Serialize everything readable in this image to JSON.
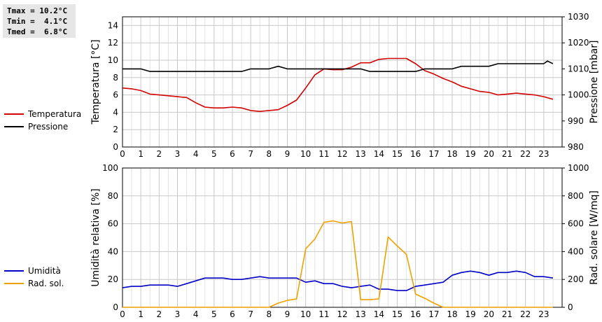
{
  "stats": {
    "tmax": "Tmax = 10.2°C",
    "tmin": "Tmin =  4.1°C",
    "tmed": "Tmed =  6.8°C"
  },
  "legend_top": [
    {
      "label": "Temperatura",
      "color": "#d40000"
    },
    {
      "label": "Pressione",
      "color": "#000000"
    }
  ],
  "legend_bottom": [
    {
      "label": "Umidità",
      "color": "#0000c8"
    },
    {
      "label": "Rad. sol.",
      "color": "#f0a000"
    }
  ],
  "chart_data": [
    {
      "type": "line",
      "xlim": [
        0,
        24
      ],
      "x_ticks": [
        "0",
        "1",
        "2",
        "3",
        "4",
        "5",
        "6",
        "7",
        "8",
        "9",
        "10",
        "11",
        "12",
        "13",
        "14",
        "15",
        "16",
        "17",
        "18",
        "19",
        "20",
        "21",
        "22",
        "23"
      ],
      "ylabel": "Temperatura [°C]",
      "ylim": [
        0,
        15
      ],
      "y_ticks": [
        "0",
        "2",
        "4",
        "6",
        "8",
        "10",
        "12",
        "14"
      ],
      "ylabel_right": "Pressione [mbar]",
      "ylim_right": [
        980,
        1030
      ],
      "y_ticks_right": [
        "980",
        "990",
        "1000",
        "1010",
        "1020",
        "1030"
      ],
      "grid": true,
      "series": [
        {
          "name": "Temperatura",
          "axis": "left",
          "color": "#d40000",
          "x": [
            0,
            0.5,
            1,
            1.5,
            2,
            2.5,
            3,
            3.5,
            4,
            4.5,
            5,
            5.5,
            6,
            6.5,
            7,
            7.5,
            8,
            8.5,
            9,
            9.5,
            10,
            10.5,
            11,
            11.5,
            12,
            12.5,
            13,
            13.5,
            14,
            14.5,
            15,
            15.5,
            16,
            16.5,
            17,
            17.5,
            18,
            18.5,
            19,
            19.5,
            20,
            20.5,
            21,
            21.5,
            22,
            22.5,
            23,
            23.5
          ],
          "values": [
            6.8,
            6.7,
            6.5,
            6.1,
            6.0,
            5.9,
            5.8,
            5.7,
            5.1,
            4.6,
            4.5,
            4.5,
            4.6,
            4.5,
            4.2,
            4.1,
            4.2,
            4.3,
            4.8,
            5.4,
            6.8,
            8.3,
            9.0,
            8.9,
            8.9,
            9.2,
            9.7,
            9.7,
            10.1,
            10.2,
            10.2,
            10.2,
            9.6,
            8.8,
            8.4,
            7.9,
            7.5,
            7.0,
            6.7,
            6.4,
            6.3,
            6.0,
            6.1,
            6.2,
            6.1,
            6.0,
            5.8,
            5.5
          ]
        },
        {
          "name": "Pressione",
          "axis": "right",
          "color": "#000000",
          "x": [
            0,
            1,
            1.5,
            2,
            3,
            4,
            5,
            6,
            6.5,
            7,
            8,
            8.5,
            9,
            10,
            11,
            12,
            13,
            13.5,
            14,
            15,
            16,
            16.5,
            17,
            18,
            18.5,
            19,
            20,
            20.5,
            21,
            22,
            23,
            23.2,
            23.5
          ],
          "values": [
            1010,
            1010,
            1009,
            1009,
            1009,
            1009,
            1009,
            1009,
            1009,
            1010,
            1010,
            1011,
            1010,
            1010,
            1010,
            1010,
            1010,
            1009,
            1009,
            1009,
            1009,
            1010,
            1010,
            1010,
            1011,
            1011,
            1011,
            1012,
            1012,
            1012,
            1012,
            1013,
            1012
          ]
        }
      ]
    },
    {
      "type": "line",
      "xlim": [
        0,
        24
      ],
      "x_ticks": [
        "0",
        "1",
        "2",
        "3",
        "4",
        "5",
        "6",
        "7",
        "8",
        "9",
        "10",
        "11",
        "12",
        "13",
        "14",
        "15",
        "16",
        "17",
        "18",
        "19",
        "20",
        "21",
        "22",
        "23"
      ],
      "ylabel": "Umidità relativa [%]",
      "ylim": [
        0,
        100
      ],
      "y_ticks": [
        "0",
        "20",
        "40",
        "60",
        "80",
        "100"
      ],
      "ylabel_right": "Rad. solare [W/mq]",
      "ylim_right": [
        0,
        1000
      ],
      "y_ticks_right": [
        "0",
        "200",
        "400",
        "600",
        "800",
        "1000"
      ],
      "grid": true,
      "series": [
        {
          "name": "Umidità",
          "axis": "left",
          "color": "#0000c8",
          "x": [
            0,
            0.5,
            1,
            1.5,
            2,
            2.5,
            3,
            3.5,
            4,
            4.5,
            5,
            5.5,
            6,
            6.5,
            7,
            7.5,
            8,
            8.5,
            9,
            9.5,
            10,
            10.5,
            11,
            11.5,
            12,
            12.5,
            13,
            13.5,
            14,
            14.5,
            15,
            15.5,
            16,
            16.5,
            17,
            17.5,
            18,
            18.5,
            19,
            19.5,
            20,
            20.5,
            21,
            21.5,
            22,
            22.5,
            23,
            23.5
          ],
          "values": [
            14,
            15,
            15,
            16,
            16,
            16,
            15,
            17,
            19,
            21,
            21,
            21,
            20,
            20,
            21,
            22,
            21,
            21,
            21,
            21,
            18,
            19,
            17,
            17,
            15,
            14,
            15,
            16,
            13,
            13,
            12,
            12,
            15,
            16,
            17,
            18,
            23,
            25,
            26,
            25,
            23,
            25,
            25,
            26,
            25,
            22,
            22,
            21
          ]
        },
        {
          "name": "Rad. sol.",
          "axis": "right",
          "color": "#f0a000",
          "x": [
            0,
            1,
            2,
            3,
            4,
            5,
            6,
            7,
            8,
            8.5,
            9,
            9.5,
            10,
            10.5,
            11,
            11.5,
            12,
            12.5,
            13,
            13.5,
            14,
            14.5,
            15,
            15.5,
            16,
            16.5,
            17,
            17.5,
            18,
            19,
            20,
            21,
            22,
            23,
            23.5
          ],
          "values": [
            0,
            0,
            0,
            0,
            0,
            0,
            0,
            0,
            0,
            30,
            50,
            60,
            420,
            490,
            610,
            620,
            605,
            615,
            55,
            55,
            60,
            505,
            440,
            380,
            95,
            65,
            30,
            0,
            0,
            0,
            0,
            0,
            0,
            0,
            0
          ]
        }
      ]
    }
  ]
}
